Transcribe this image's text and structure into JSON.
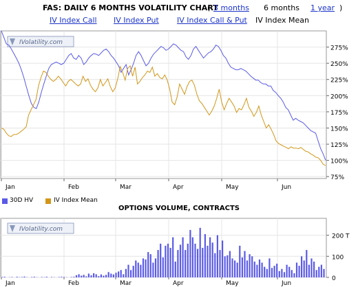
{
  "header": {
    "title": "FAS: DAILY 6 MONTHS VOLATILITY CHART",
    "paren_open": "(",
    "paren_close": ")",
    "range_links": [
      "3 months",
      "1 year"
    ],
    "current_range": "6 months"
  },
  "tabs": [
    {
      "label": "IV Index Call",
      "active": false
    },
    {
      "label": "IV Index Put",
      "active": false
    },
    {
      "label": "IV Index Call & Put",
      "active": false
    },
    {
      "label": "IV Index Mean",
      "active": true
    }
  ],
  "watermark": "IVolatility.com",
  "chart_data": [
    {
      "type": "line",
      "title": "",
      "x_tick_labels": [
        "Jan",
        "Feb",
        "Mar",
        "Apr",
        "May",
        "Jun"
      ],
      "y_tick_labels": [
        "75%",
        "100%",
        "125%",
        "150%",
        "175%",
        "200%",
        "225%",
        "250%",
        "275%"
      ],
      "ylim": [
        72,
        300
      ],
      "grid": true,
      "legend_position": "bottom-left",
      "series": [
        {
          "name": "30D HV",
          "color": "#5a5ae6",
          "values": [
            300,
            290,
            280,
            278,
            272,
            265,
            258,
            250,
            240,
            228,
            214,
            200,
            188,
            182,
            180,
            190,
            205,
            218,
            230,
            242,
            248,
            250,
            252,
            250,
            248,
            250,
            256,
            262,
            265,
            258,
            256,
            262,
            258,
            248,
            252,
            258,
            262,
            265,
            264,
            262,
            266,
            270,
            272,
            268,
            262,
            258,
            252,
            246,
            236,
            242,
            248,
            232,
            240,
            250,
            262,
            268,
            262,
            254,
            246,
            250,
            258,
            264,
            268,
            272,
            276,
            274,
            270,
            272,
            276,
            280,
            278,
            274,
            270,
            268,
            260,
            256,
            262,
            272,
            276,
            270,
            264,
            258,
            262,
            266,
            268,
            272,
            278,
            276,
            270,
            262,
            258,
            250,
            244,
            242,
            240,
            240,
            242,
            240,
            238,
            234,
            230,
            227,
            224,
            224,
            220,
            218,
            218,
            215,
            215,
            208,
            205,
            200,
            196,
            190,
            182,
            178,
            170,
            162,
            165,
            162,
            160,
            158,
            154,
            150,
            146,
            144,
            142,
            130,
            118,
            110,
            100
          ]
        },
        {
          "name": "IV Index Mean",
          "color": "#d29618",
          "values": [
            150,
            148,
            142,
            138,
            137,
            140,
            140,
            142,
            145,
            148,
            152,
            170,
            178,
            186,
            194,
            215,
            228,
            238,
            236,
            230,
            225,
            222,
            225,
            230,
            226,
            220,
            215,
            222,
            225,
            222,
            218,
            215,
            218,
            230,
            222,
            226,
            216,
            210,
            206,
            212,
            225,
            215,
            220,
            226,
            214,
            206,
            212,
            226,
            245,
            236,
            224,
            242,
            246,
            230,
            244,
            218,
            222,
            228,
            232,
            238,
            236,
            244,
            230,
            234,
            228,
            226,
            232,
            224,
            210,
            190,
            186,
            198,
            218,
            210,
            202,
            214,
            222,
            224,
            216,
            202,
            192,
            188,
            182,
            176,
            170,
            176,
            184,
            196,
            210,
            190,
            178,
            188,
            196,
            190,
            184,
            174,
            180,
            178,
            186,
            196,
            182,
            176,
            168,
            174,
            184,
            170,
            160,
            150,
            155,
            148,
            140,
            130,
            126,
            124,
            122,
            120,
            118,
            121,
            119,
            119,
            118,
            120,
            117,
            114,
            113,
            110,
            108,
            105,
            104,
            100,
            94,
            92
          ]
        }
      ]
    },
    {
      "type": "bar",
      "title": "OPTIONS VOLUME, CONTRACTS",
      "x_tick_labels": [
        "Jan",
        "Feb",
        "Mar",
        "Apr",
        "May",
        "Jun"
      ],
      "y_tick_labels": [
        "0",
        "100",
        "200 T"
      ],
      "ylim": [
        0,
        280
      ],
      "unit": "thousand contracts",
      "series": [
        {
          "name": "Options Volume",
          "color": "#5a5ae6",
          "values": [
            2,
            3,
            0,
            1,
            2,
            0,
            3,
            1,
            2,
            4,
            1,
            0,
            2,
            3,
            1,
            0,
            2,
            1,
            3,
            0,
            2,
            1,
            0,
            2,
            3,
            2,
            1,
            0,
            2,
            3,
            10,
            15,
            8,
            12,
            5,
            18,
            10,
            20,
            15,
            6,
            14,
            8,
            12,
            25,
            18,
            14,
            22,
            28,
            35,
            15,
            40,
            60,
            35,
            55,
            80,
            70,
            60,
            90,
            85,
            120,
            110,
            70,
            90,
            130,
            160,
            95,
            150,
            160,
            140,
            190,
            75,
            130,
            155,
            190,
            130,
            160,
            225,
            190,
            160,
            135,
            235,
            140,
            205,
            150,
            190,
            165,
            115,
            200,
            130,
            175,
            100,
            105,
            125,
            90,
            80,
            70,
            150,
            95,
            125,
            80,
            110,
            100,
            75,
            60,
            85,
            70,
            50,
            40,
            90,
            45,
            55,
            65,
            30,
            40,
            25,
            60,
            50,
            35,
            20,
            70,
            55,
            100,
            80,
            130,
            60,
            90,
            75,
            35,
            50,
            60,
            40
          ]
        }
      ]
    }
  ],
  "legend": {
    "items": [
      {
        "label": "30D HV",
        "color": "#5a5ae6"
      },
      {
        "label": "IV Index Mean",
        "color": "#d29618"
      }
    ]
  }
}
